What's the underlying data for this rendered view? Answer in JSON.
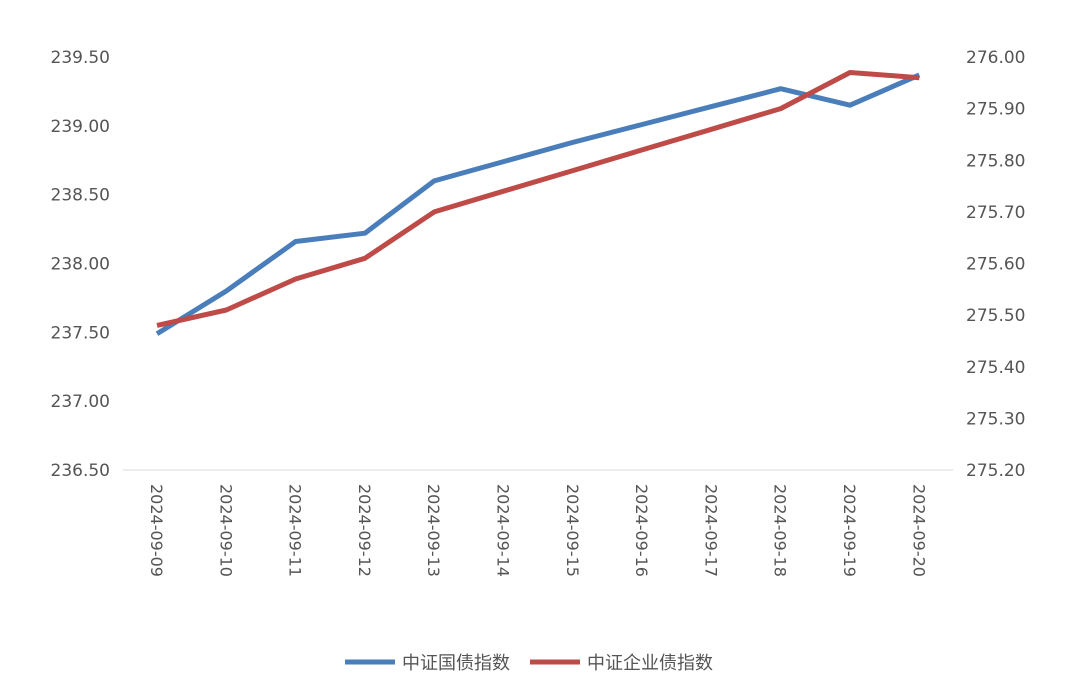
{
  "chart_data": {
    "type": "line",
    "title": "",
    "xlabel": "",
    "ylabel": "",
    "categories": [
      "2024-09-09",
      "2024-09-10",
      "2024-09-11",
      "2024-09-12",
      "2024-09-13",
      "2024-09-14",
      "2024-09-15",
      "2024-09-16",
      "2024-09-17",
      "2024-09-18",
      "2024-09-19",
      "2024-09-20"
    ],
    "y_left": {
      "ylim": [
        236.5,
        239.5
      ],
      "ticks": [
        "236.50",
        "237.00",
        "237.50",
        "238.00",
        "238.50",
        "239.00",
        "239.50"
      ]
    },
    "y_right": {
      "ylim": [
        275.2,
        276.0
      ],
      "ticks": [
        "275.20",
        "275.30",
        "275.40",
        "275.50",
        "275.60",
        "275.70",
        "275.80",
        "275.90",
        "276.00"
      ]
    },
    "series": [
      {
        "name": "中证国债指数",
        "axis": "left",
        "color": "#4A7EBB",
        "values": [
          237.49,
          237.8,
          238.16,
          238.22,
          238.6,
          238.74,
          238.88,
          239.01,
          239.14,
          239.27,
          239.15,
          239.37
        ]
      },
      {
        "name": "中证企业债指数",
        "axis": "right",
        "color": "#BE4B48",
        "values": [
          275.48,
          275.51,
          275.57,
          275.61,
          275.7,
          275.74,
          275.78,
          275.82,
          275.86,
          275.9,
          275.97,
          275.96
        ]
      }
    ],
    "grid": false,
    "legend": "bottom-center"
  }
}
